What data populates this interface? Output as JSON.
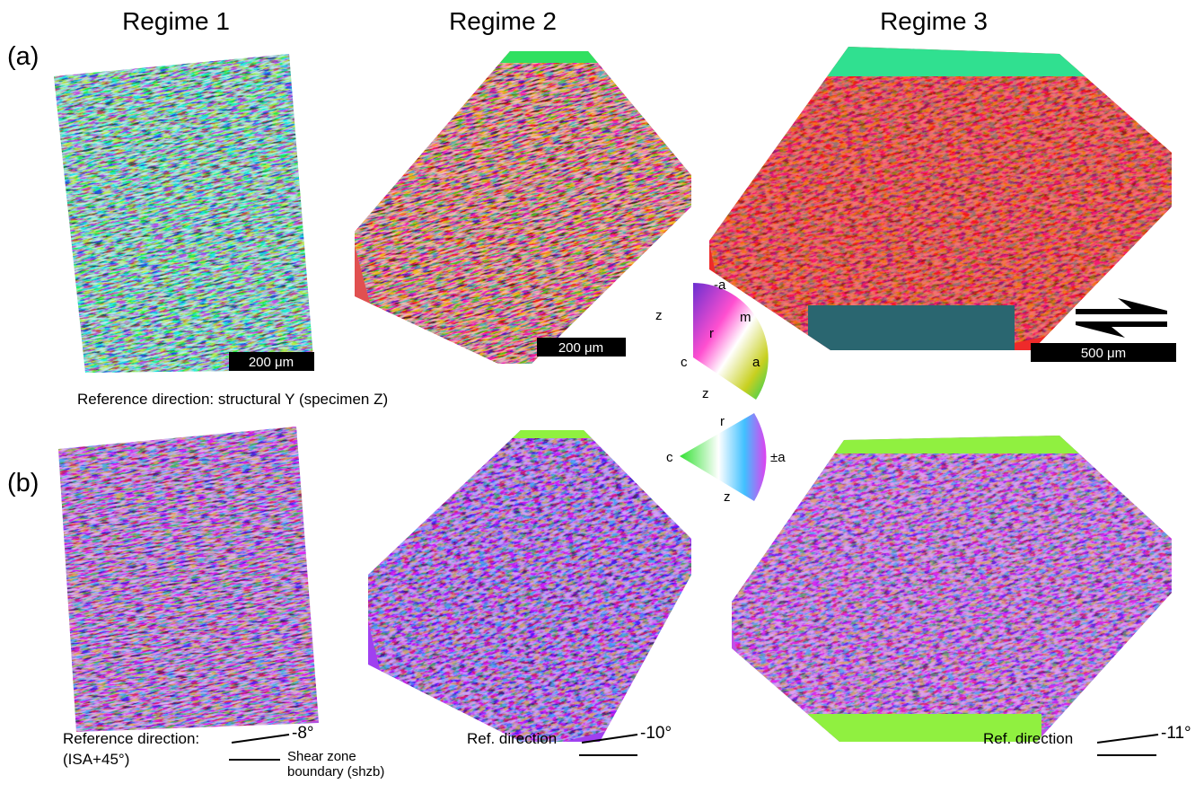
{
  "columns": [
    "Regime 1",
    "Regime 2",
    "Regime 3"
  ],
  "panels": [
    "(a)",
    "(b)"
  ],
  "scale_bars": [
    "200 μm",
    "200 μm",
    "500 μm"
  ],
  "reference_a": "Reference direction:  structural Y (specimen Z)",
  "key_a": {
    "labels": [
      "-a",
      "m",
      "z",
      "r",
      "c",
      "a",
      "z"
    ]
  },
  "key_b": {
    "labels": [
      "r",
      "c",
      "±a",
      "z"
    ]
  },
  "reference_b": {
    "regime1": {
      "label": "Reference direction:",
      "sub": "(ISA+45°)",
      "angle": "-8°",
      "boundary": [
        "Shear zone",
        "boundary (shzb)"
      ]
    },
    "regime2": {
      "label": "Ref. direction",
      "angle": "-10°"
    },
    "regime3": {
      "label": "Ref. direction",
      "angle": "-11°"
    }
  }
}
